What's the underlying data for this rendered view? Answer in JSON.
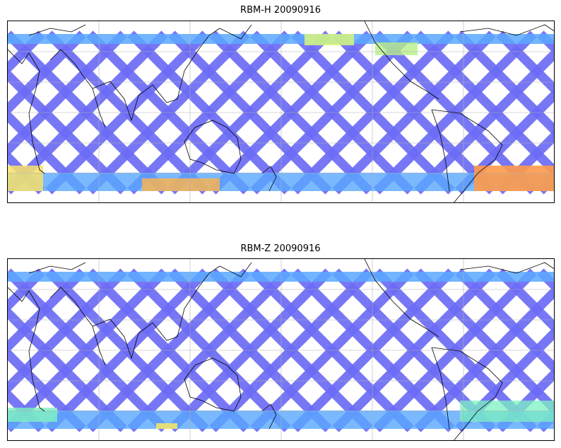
{
  "panels": [
    {
      "title": "RBM-H 20090916",
      "colormap": "jet",
      "variant": "H"
    },
    {
      "title": "RBM-Z 20090916",
      "colormap": "jet",
      "variant": "Z"
    }
  ],
  "map": {
    "projection": "equirectangular",
    "coastlines": true,
    "gridlines": true,
    "swath_color_low": "#6b6bf5",
    "swath_color_mid": "#5aa8ff",
    "swath_color_high": "#ff9a4a"
  }
}
